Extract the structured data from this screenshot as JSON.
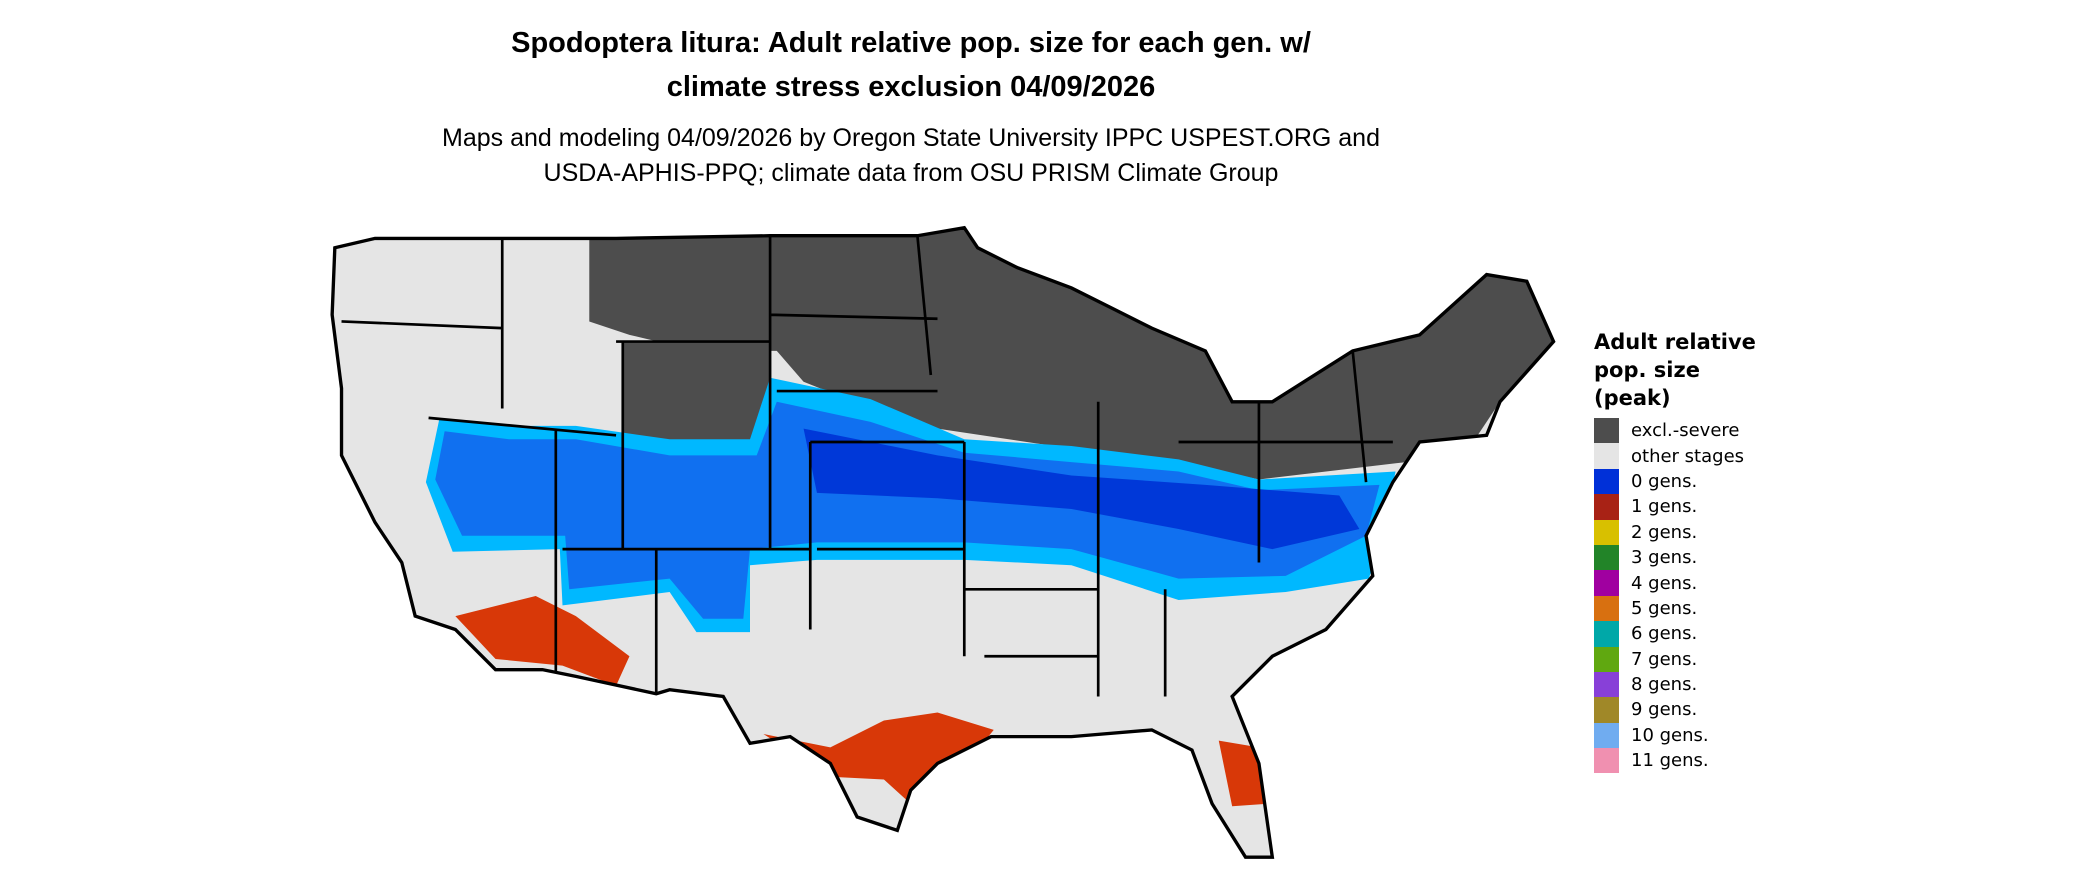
{
  "title": {
    "line1": "Spodoptera litura: Adult relative pop. size for each gen. w/",
    "line2": "climate stress exclusion 04/09/2026"
  },
  "subtitle": {
    "line1": "Maps and modeling 04/09/2026 by Oregon State University IPPC USPEST.ORG and",
    "line2": "USDA-APHIS-PPQ; climate data from OSU PRISM Climate Group"
  },
  "legend": {
    "title_lines": [
      "Adult relative",
      "pop. size",
      "(peak)"
    ],
    "items": [
      {
        "label": "excl.-severe",
        "color": "#4d4d4d"
      },
      {
        "label": "other stages",
        "color": "#e5e5e5"
      },
      {
        "label": "0 gens.",
        "color": "#0030d8"
      },
      {
        "label": "1 gens.",
        "color": "#a82215"
      },
      {
        "label": "2 gens.",
        "color": "#d8c000"
      },
      {
        "label": "3 gens.",
        "color": "#228428"
      },
      {
        "label": "4 gens.",
        "color": "#a000a0"
      },
      {
        "label": "5 gens.",
        "color": "#d87010"
      },
      {
        "label": "6 gens.",
        "color": "#00a8a8"
      },
      {
        "label": "7 gens.",
        "color": "#60a810"
      },
      {
        "label": "8 gens.",
        "color": "#8840d8"
      },
      {
        "label": "9 gens.",
        "color": "#a08828"
      },
      {
        "label": "10 gens.",
        "color": "#70acf0"
      },
      {
        "label": "11 gens.",
        "color": "#f090b0"
      }
    ]
  },
  "map_colors": {
    "cyan": "#00b8ff",
    "mid_blue": "#1070f0",
    "deep_blue": "#0038d8",
    "red": "#d83808"
  }
}
